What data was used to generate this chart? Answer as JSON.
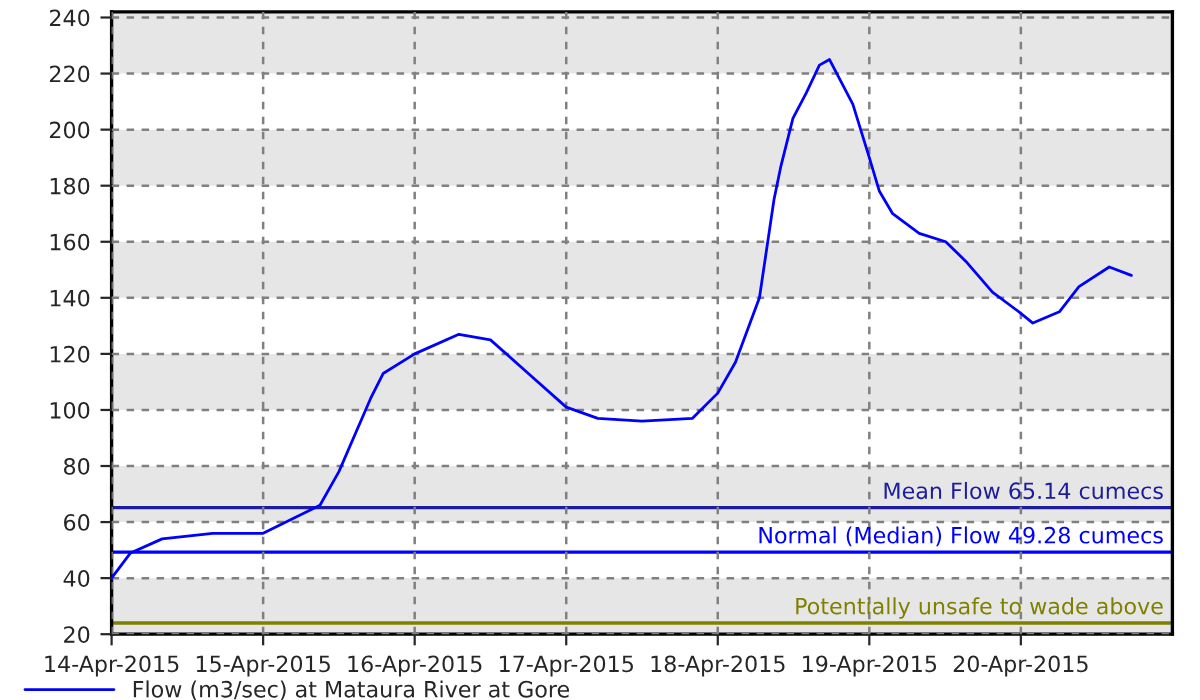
{
  "chart_data": {
    "type": "line",
    "xlim": [
      "2015-04-14",
      "2015-04-21"
    ],
    "xticks": [
      {
        "value": "2015-04-14",
        "label": "14-Apr-2015"
      },
      {
        "value": "2015-04-15",
        "label": "15-Apr-2015"
      },
      {
        "value": "2015-04-16",
        "label": "16-Apr-2015"
      },
      {
        "value": "2015-04-17",
        "label": "17-Apr-2015"
      },
      {
        "value": "2015-04-18",
        "label": "18-Apr-2015"
      },
      {
        "value": "2015-04-19",
        "label": "19-Apr-2015"
      },
      {
        "value": "2015-04-20",
        "label": "20-Apr-2015"
      }
    ],
    "ylim": [
      20,
      242
    ],
    "yticks": [
      20,
      40,
      60,
      80,
      100,
      120,
      140,
      160,
      180,
      200,
      220,
      240
    ],
    "grid": true,
    "legend": "bottom",
    "marker": "none",
    "line_style": "solid",
    "series": [
      {
        "name": "Flow (m3/sec) at Mataura River at Gore",
        "color": "#0000ff",
        "x": [
          "2015-04-14T00:00",
          "2015-04-14T03:00",
          "2015-04-14T08:00",
          "2015-04-14T16:00",
          "2015-04-15T00:00",
          "2015-04-15T09:00",
          "2015-04-15T12:00",
          "2015-04-15T17:00",
          "2015-04-15T19:00",
          "2015-04-16T00:00",
          "2015-04-16T07:00",
          "2015-04-16T12:00",
          "2015-04-16T18:00",
          "2015-04-17T00:00",
          "2015-04-17T05:00",
          "2015-04-17T12:00",
          "2015-04-17T20:00",
          "2015-04-18T00:00",
          "2015-04-18T02:48",
          "2015-04-18T06:36",
          "2015-04-18T08:54",
          "2015-04-18T10:00",
          "2015-04-18T11:54",
          "2015-04-18T14:00",
          "2015-04-18T16:06",
          "2015-04-18T17:42",
          "2015-04-18T21:24",
          "2015-04-19T00:00",
          "2015-04-19T01:36",
          "2015-04-19T03:42",
          "2015-04-19T07:54",
          "2015-04-19T12:06",
          "2015-04-19T15:18",
          "2015-04-19T19:30",
          "2015-04-19T23:42",
          "2015-04-20T01:54",
          "2015-04-20T06:06",
          "2015-04-20T09:12",
          "2015-04-20T14:00",
          "2015-04-20T17:30"
        ],
        "values": [
          40,
          49,
          54,
          56,
          56,
          66,
          78,
          104,
          113,
          120,
          127,
          125,
          113,
          101,
          97,
          96,
          97,
          106,
          117,
          140,
          175,
          187,
          204,
          213,
          223,
          225,
          209,
          190,
          178,
          170,
          163,
          160,
          153,
          142,
          135,
          131,
          135,
          144,
          151,
          148
        ]
      }
    ],
    "ref_lines": [
      {
        "axis": "y",
        "value": 65.14,
        "label": "Mean Flow 65.14 cumecs",
        "color": "#1c1c9c",
        "line_style": "solid"
      },
      {
        "axis": "y",
        "value": 49.28,
        "label": "Normal (Median) Flow 49.28 cumecs",
        "color": "#0000ff",
        "line_style": "solid"
      },
      {
        "axis": "y",
        "value": 24,
        "label": "Potentially unsafe to wade above",
        "color": "#808000",
        "line_style": "solid"
      }
    ],
    "bands": [
      {
        "axis": "y",
        "from": 20,
        "to": 40,
        "color": "#e6e6e6"
      },
      {
        "axis": "y",
        "from": 60,
        "to": 80,
        "color": "#e6e6e6"
      },
      {
        "axis": "y",
        "from": 100,
        "to": 120,
        "color": "#e6e6e6"
      },
      {
        "axis": "y",
        "from": 140,
        "to": 160,
        "color": "#e6e6e6"
      },
      {
        "axis": "y",
        "from": 180,
        "to": 200,
        "color": "#e6e6e6"
      },
      {
        "axis": "y",
        "from": 220,
        "to": 242,
        "color": "#e6e6e6"
      }
    ]
  }
}
